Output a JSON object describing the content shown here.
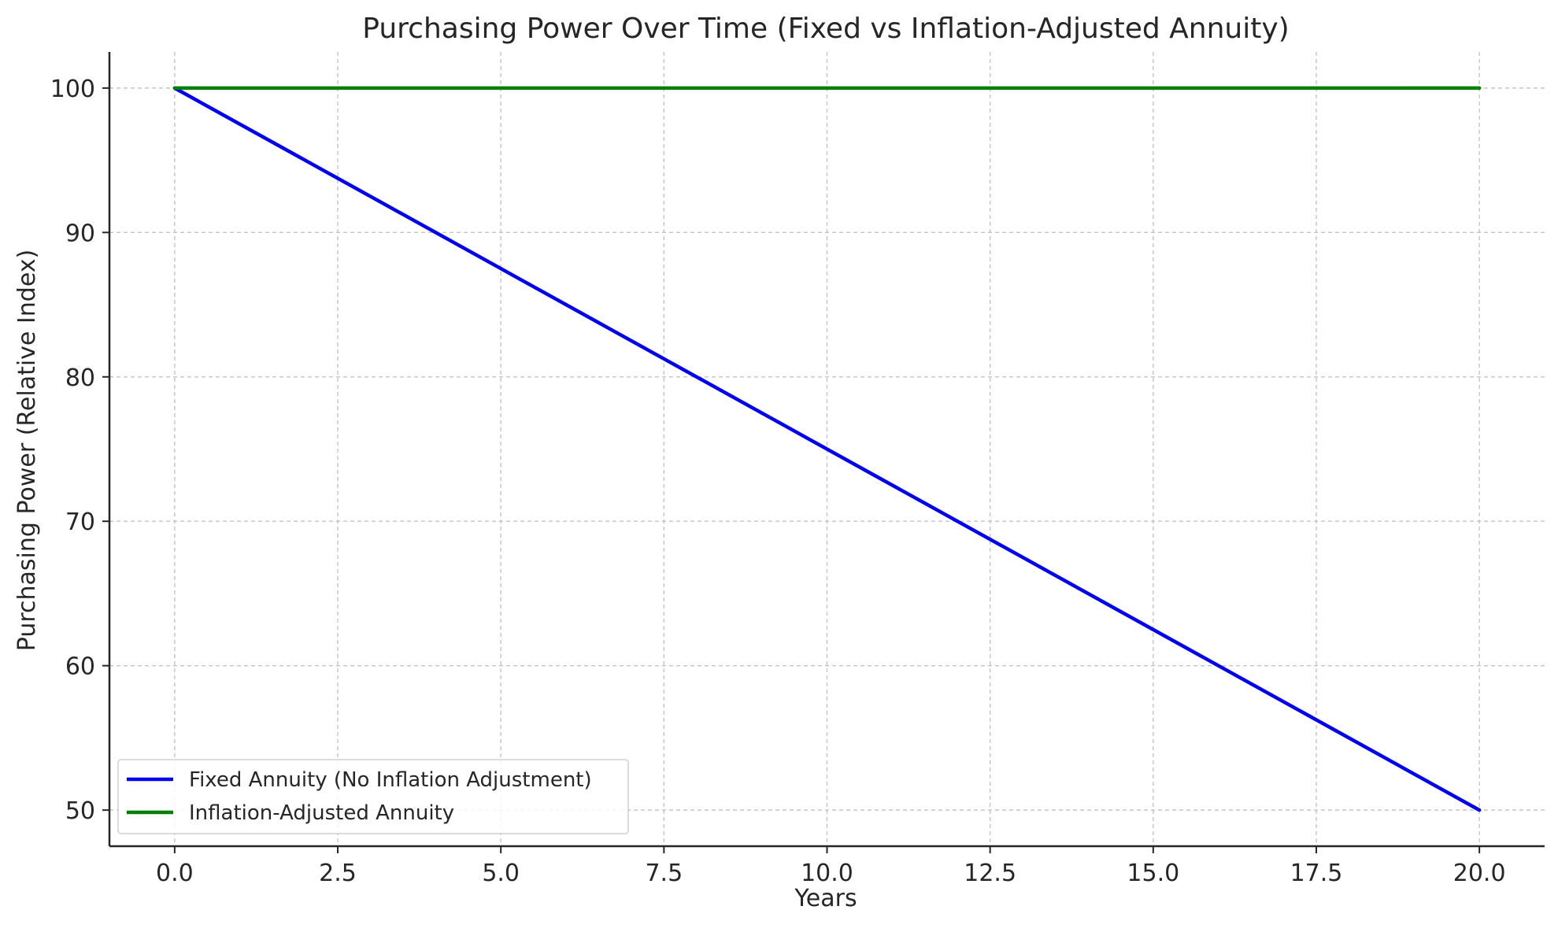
{
  "chart_data": {
    "type": "line",
    "title": "Purchasing Power Over Time (Fixed vs Inflation-Adjusted Annuity)",
    "xlabel": "Years",
    "ylabel": "Purchasing Power (Relative Index)",
    "xlim": [
      -1,
      21
    ],
    "ylim": [
      47.5,
      102.5
    ],
    "x_ticks": [
      0.0,
      2.5,
      5.0,
      7.5,
      10.0,
      12.5,
      15.0,
      17.5,
      20.0
    ],
    "x_tick_labels": [
      "0.0",
      "2.5",
      "5.0",
      "7.5",
      "10.0",
      "12.5",
      "15.0",
      "17.5",
      "20.0"
    ],
    "y_ticks": [
      50,
      60,
      70,
      80,
      90,
      100
    ],
    "y_tick_labels": [
      "50",
      "60",
      "70",
      "80",
      "90",
      "100"
    ],
    "grid": true,
    "legend_position": "lower-left",
    "series": [
      {
        "name": "Fixed Annuity (No Inflation Adjustment)",
        "color": "#0000ee",
        "x": [
          0,
          20
        ],
        "y": [
          100,
          50
        ]
      },
      {
        "name": "Inflation-Adjusted Annuity",
        "color": "#008000",
        "x": [
          0,
          20
        ],
        "y": [
          100,
          100
        ]
      }
    ]
  }
}
